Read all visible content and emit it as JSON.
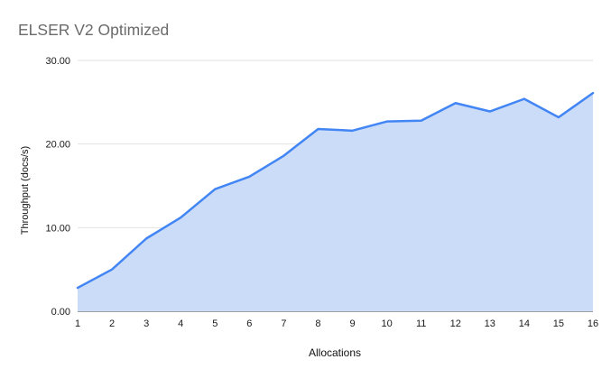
{
  "chart_data": {
    "type": "area",
    "title": "ELSER V2 Optimized",
    "xlabel": "Allocations",
    "ylabel": "Throughput (docs/s)",
    "categories": [
      1,
      2,
      3,
      4,
      5,
      6,
      7,
      8,
      9,
      10,
      11,
      12,
      13,
      14,
      15,
      16
    ],
    "series": [
      {
        "name": "Throughput",
        "values": [
          2.8,
          5.0,
          8.7,
          11.2,
          14.6,
          16.1,
          18.6,
          21.8,
          21.6,
          22.7,
          22.8,
          24.9,
          23.9,
          25.4,
          23.2,
          26.1
        ]
      }
    ],
    "ylim": [
      0,
      30
    ],
    "yticks": [
      0,
      10,
      20,
      30
    ],
    "ytick_labels": [
      "0.00",
      "10.00",
      "20.00",
      "30.00"
    ],
    "grid": true,
    "legend": "none",
    "colors": {
      "line": "#4285f4",
      "fill": "#cbdcf9",
      "gridline": "#e2e2e2",
      "baseline": "#424242",
      "title_text": "#6b6b6b",
      "tick_text": "#1a1a1a"
    }
  }
}
